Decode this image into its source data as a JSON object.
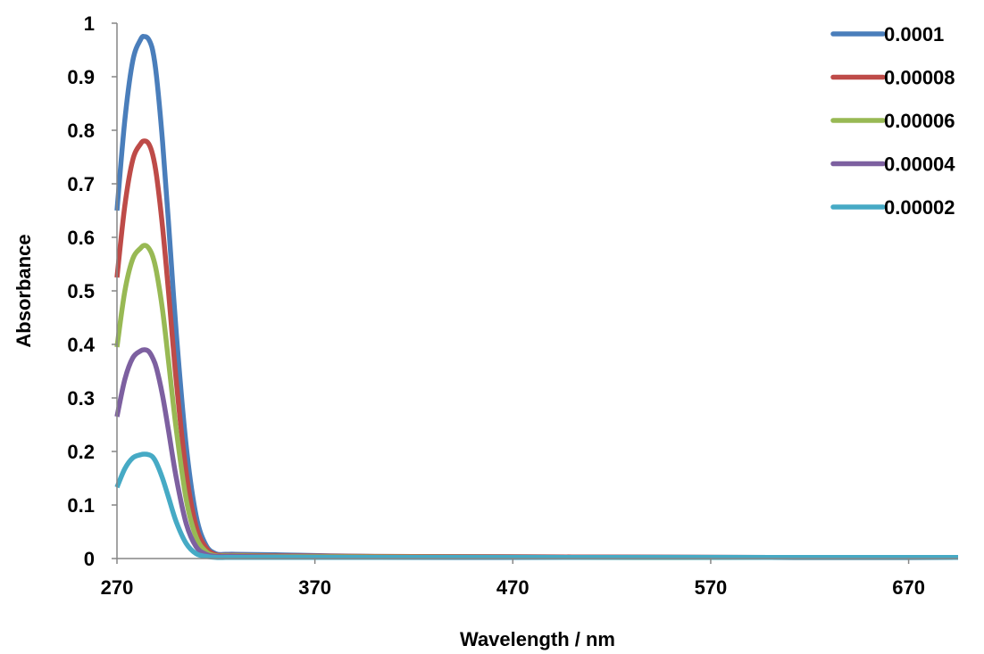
{
  "chart_data": {
    "type": "line",
    "title": "",
    "xlabel": "Wavelength / nm",
    "ylabel": "Absorbance",
    "xlim": [
      270,
      695
    ],
    "ylim": [
      0,
      1
    ],
    "x_ticks": [
      270,
      370,
      470,
      570,
      670
    ],
    "y_ticks": [
      0,
      0.1,
      0.2,
      0.3,
      0.4,
      0.5,
      0.6,
      0.7,
      0.8,
      0.9,
      1
    ],
    "grid": false,
    "legend_position": "top-right",
    "series": [
      {
        "name": "0.0001",
        "color": "#4a7ebb",
        "x": [
          270,
          274,
          278,
          282,
          284,
          286,
          288,
          290,
          293,
          296,
          300,
          305,
          310,
          315,
          320,
          325,
          330,
          350,
          400,
          500,
          600,
          695
        ],
        "y": [
          0.65,
          0.82,
          0.93,
          0.97,
          0.975,
          0.97,
          0.95,
          0.9,
          0.78,
          0.63,
          0.42,
          0.21,
          0.08,
          0.025,
          0.009,
          0.008,
          0.008,
          0.007,
          0.004,
          0.003,
          0.002,
          0.002
        ]
      },
      {
        "name": "0.00008",
        "color": "#be4b48",
        "x": [
          270,
          274,
          278,
          282,
          284,
          286,
          288,
          290,
          293,
          296,
          300,
          305,
          310,
          315,
          320,
          325,
          330,
          350,
          400,
          500,
          600,
          695
        ],
        "y": [
          0.525,
          0.66,
          0.745,
          0.775,
          0.78,
          0.775,
          0.755,
          0.715,
          0.62,
          0.5,
          0.33,
          0.16,
          0.06,
          0.02,
          0.007,
          0.006,
          0.006,
          0.005,
          0.004,
          0.003,
          0.002,
          0.002
        ]
      },
      {
        "name": "0.00006",
        "color": "#98b954",
        "x": [
          270,
          274,
          278,
          282,
          284,
          286,
          288,
          290,
          293,
          296,
          300,
          305,
          310,
          315,
          320,
          325,
          330,
          350,
          400,
          500,
          600,
          695
        ],
        "y": [
          0.395,
          0.5,
          0.56,
          0.58,
          0.585,
          0.58,
          0.565,
          0.535,
          0.465,
          0.37,
          0.24,
          0.11,
          0.04,
          0.013,
          0.005,
          0.005,
          0.005,
          0.004,
          0.003,
          0.002,
          0.002,
          0.002
        ]
      },
      {
        "name": "0.00004",
        "color": "#7d60a0",
        "x": [
          270,
          274,
          278,
          282,
          284,
          286,
          288,
          290,
          293,
          296,
          300,
          305,
          310,
          315,
          320,
          325,
          330,
          350,
          400,
          500,
          600,
          695
        ],
        "y": [
          0.265,
          0.335,
          0.375,
          0.388,
          0.39,
          0.387,
          0.375,
          0.355,
          0.305,
          0.24,
          0.15,
          0.065,
          0.022,
          0.008,
          0.004,
          0.004,
          0.004,
          0.003,
          0.002,
          0.002,
          0.002,
          0.002
        ]
      },
      {
        "name": "0.00002",
        "color": "#46aac5",
        "x": [
          270,
          274,
          278,
          282,
          284,
          286,
          288,
          290,
          293,
          296,
          300,
          305,
          310,
          315,
          320,
          325,
          330,
          350,
          400,
          500,
          600,
          695
        ],
        "y": [
          0.133,
          0.168,
          0.188,
          0.194,
          0.195,
          0.194,
          0.19,
          0.178,
          0.15,
          0.115,
          0.068,
          0.028,
          0.009,
          0.004,
          0.002,
          0.002,
          0.002,
          0.002,
          0.002,
          0.002,
          0.002,
          0.002
        ]
      }
    ]
  }
}
